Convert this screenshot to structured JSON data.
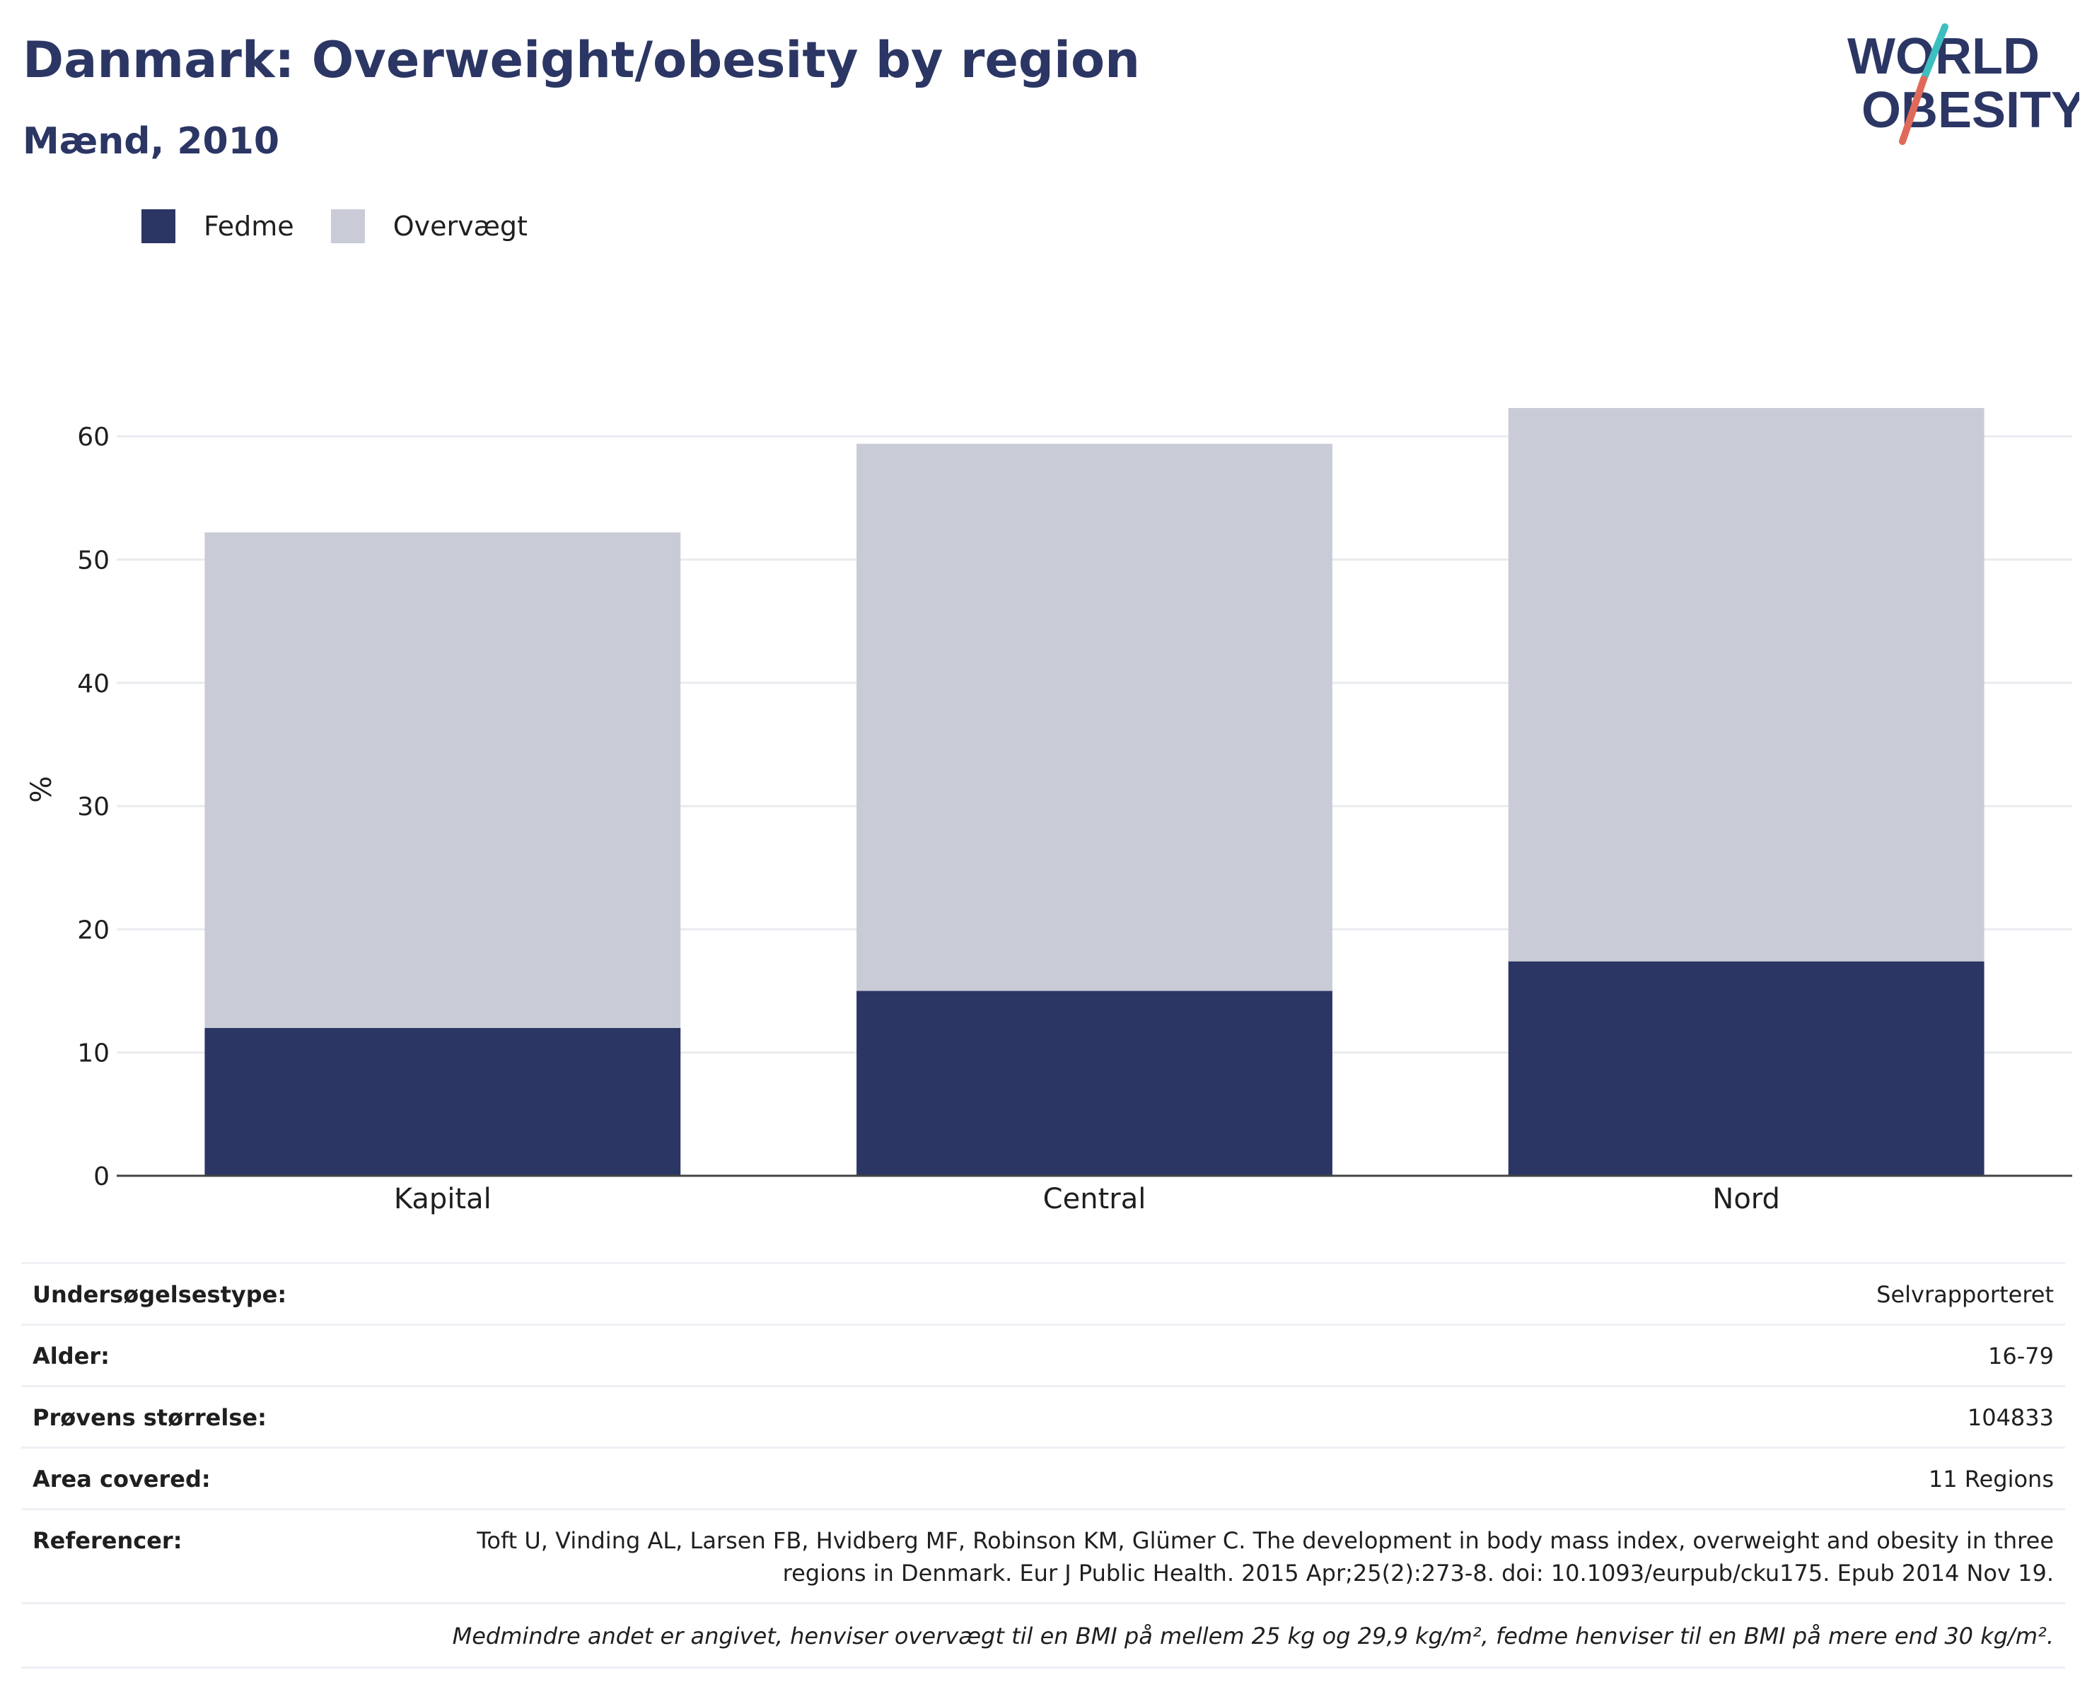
{
  "header": {
    "title": "Danmark: Overweight/obesity by region",
    "subtitle": "Mænd, 2010"
  },
  "logo": {
    "line1": "WORLD",
    "line2": "OBESITY",
    "colors": {
      "text": "#2b3664",
      "slash_top": "#3dbfbf",
      "slash_bottom": "#e06a5a"
    }
  },
  "colors": {
    "fedme": "#2b3664",
    "overvaegt": "#c9cbd7",
    "grid": "#e9ebef",
    "axis": "#444444"
  },
  "chart_data": {
    "type": "bar",
    "stacked": true,
    "categories": [
      "Kapital",
      "Central",
      "Nord"
    ],
    "series": [
      {
        "name": "Fedme",
        "values": [
          12.0,
          15.0,
          17.4
        ]
      },
      {
        "name": "Overvægt",
        "values": [
          40.2,
          44.4,
          44.9
        ]
      }
    ],
    "totals": [
      52.2,
      59.4,
      62.3
    ],
    "ylabel": "%",
    "ylim": [
      0,
      65
    ],
    "yticks": [
      0,
      10,
      20,
      30,
      40,
      50,
      60
    ],
    "grid": true,
    "legend": "top-left"
  },
  "meta": {
    "rows": [
      {
        "label": "Undersøgelsestype:",
        "value": "Selvrapporteret"
      },
      {
        "label": "Alder:",
        "value": "16-79"
      },
      {
        "label": "Prøvens størrelse:",
        "value": "104833"
      },
      {
        "label": "Area covered:",
        "value": "11 Regions"
      }
    ],
    "reference": {
      "label": "Referencer:",
      "value": "Toft U, Vinding AL, Larsen FB, Hvidberg MF, Robinson KM, Glümer C. The development in body mass index, overweight and obesity in three regions in Denmark. Eur J Public Health. 2015 Apr;25(2):273-8. doi: 10.1093/eurpub/cku175. Epub 2014 Nov 19."
    },
    "note": "Medmindre andet er angivet, henviser overvægt til en BMI på mellem 25 kg og 29,9 kg/m², fedme henviser til en BMI på mere end 30 kg/m²."
  }
}
